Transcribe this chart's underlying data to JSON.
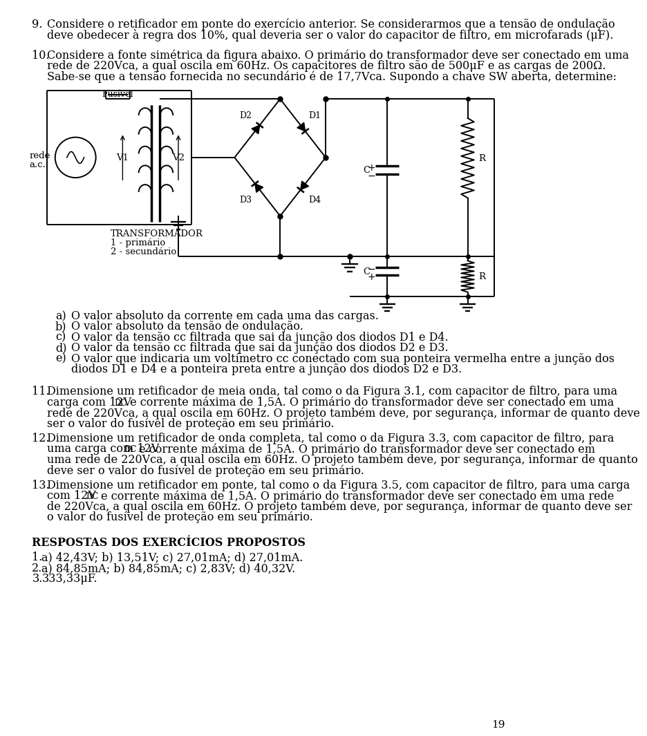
{
  "background_color": "#ffffff",
  "page_number": "19",
  "font_size_body": 11.5,
  "p9_text_line1": "Considere o retificador em ponte do exercício anterior. Se considerarmos que a tensão de ondulação",
  "p9_text_line2": "deve obedecer à regra dos 10%, qual deveria ser o valor do capacitor de filtro, em microfarads (μF).",
  "p10_text_line1": "Considere a fonte simétrica da figura abaixo. O primário do transformador deve ser conectado em uma",
  "p10_text_line2": "rede de 220Vca, a qual oscila em 60Hz. Os capacitores de filtro são de 500μF e as cargas de 200Ω.",
  "p10_text_line3": "Sabe-se que a tensão fornecida no secundário é de 17,7Vca. Supondo a chave SW aberta, determine:",
  "items": [
    [
      "a)",
      "O valor absoluto da corrente em cada uma das cargas."
    ],
    [
      "b)",
      "O valor absoluto da tensão de ondulação."
    ],
    [
      "c)",
      "O valor da tensão cc filtrada que sai da junção dos diodos D1 e D4."
    ],
    [
      "d)",
      "O valor da tensão cc filtrada que sai da junção dos diodos D2 e D3."
    ],
    [
      "e)",
      "O valor que indicaria um voltímetro cc conectado com sua ponteira vermelha entre a junção dos"
    ],
    [
      "",
      "diodos D1 e D4 e a ponteira preta entre a junção dos diodos D2 e D3."
    ]
  ],
  "p11_line1": "Dimensione um retificador de meia onda, tal como o da Figura 3.1, com capacitor de filtro, para uma",
  "p11_line2": "carga com 12V",
  "p11_line2b": " e corrente máxima de 1,5A. O primário do transformador deve ser conectado em uma",
  "p11_line3": "rede de 220Vca, a qual oscila em 60Hz. O projeto também deve, por segurança, informar de quanto deve",
  "p11_line4": "ser o valor do fusível de proteção em seu primário.",
  "p12_line1": "Dimensione um retificador de onda completa, tal como o da Figura 3.3, com capacitor de filtro, para",
  "p12_line2": "uma carga com 12V",
  "p12_line2b": " e corrente máxima de 1,5A. O primário do transformador deve ser conectado em",
  "p12_line3": "uma rede de 220Vca, a qual oscila em 60Hz. O projeto também deve, por segurança, informar de quanto",
  "p12_line4": "deve ser o valor do fusível de proteção em seu primário.",
  "p13_line1": "Dimensione um retificador em ponte, tal como o da Figura 3.5, com capacitor de filtro, para uma carga",
  "p13_line2": "com 12V",
  "p13_line2b": " e corrente máxima de 1,5A. O primário do transformador deve ser conectado em uma rede",
  "p13_line3": "de 220Vca, a qual oscila em 60Hz. O projeto também deve, por segurança, informar de quanto deve ser",
  "p13_line4": "o valor do fusível de proteção em seu primário.",
  "respostas_title": "RESPOSTAS DOS EXERCÍCIOS PROPOSTOS",
  "resp1": "a) 42,43V; b) 13,51V; c) 27,01mA; d) 27,01mA.",
  "resp2": "a) 84,85mA; b) 84,85mA; c) 2,83V; d) 40,32V.",
  "resp3": "333,33μF."
}
